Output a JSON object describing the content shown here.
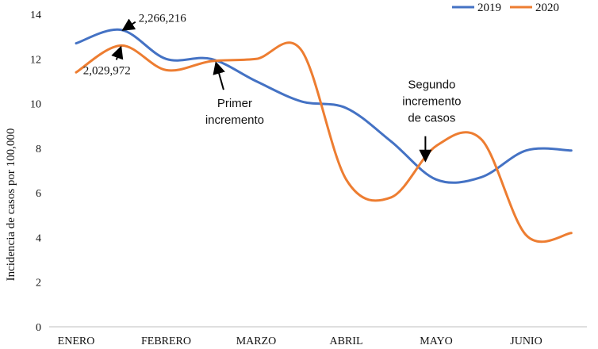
{
  "chart_data": {
    "type": "line",
    "title": "",
    "xlabel": "",
    "ylabel": "Incidencia de casos por 100,000",
    "ylim": [
      0,
      14
    ],
    "yticks": [
      0,
      2,
      4,
      6,
      8,
      10,
      12,
      14
    ],
    "grid": false,
    "legend_position": "top-right",
    "categories": [
      "ENERO",
      "FEBRERO",
      "MARZO",
      "ABRIL",
      "MAYO",
      "JUNIO"
    ],
    "series": [
      {
        "name": "2019",
        "color": "#4472C4",
        "x": [
          0,
          0.5,
          1,
          1.5,
          2,
          2.5,
          3,
          3.5,
          4,
          4.5,
          5,
          5.5
        ],
        "y": [
          12.7,
          13.3,
          12.0,
          12.0,
          11.0,
          10.1,
          9.8,
          8.3,
          6.6,
          6.7,
          7.9,
          7.9
        ]
      },
      {
        "name": "2020",
        "color": "#ED7D31",
        "x": [
          0,
          0.5,
          1,
          1.5,
          2,
          2.5,
          3,
          3.5,
          4,
          4.5,
          5,
          5.5
        ],
        "y": [
          11.4,
          12.6,
          11.5,
          11.9,
          12.0,
          12.4,
          6.6,
          5.8,
          8.1,
          8.4,
          4.1,
          4.2
        ]
      }
    ],
    "annotations": [
      {
        "text": "2,266,216",
        "series": "2019",
        "x": 0.5,
        "y": 13.3
      },
      {
        "text": "2,029,972",
        "series": "2020",
        "x": 0.5,
        "y": 12.6
      },
      {
        "lines": [
          "Primer",
          "incremento"
        ],
        "x": 1.55,
        "y": 11.9
      },
      {
        "lines": [
          "Segundo",
          "incremento",
          "de casos"
        ],
        "x": 3.88,
        "y": 7.4
      }
    ]
  }
}
